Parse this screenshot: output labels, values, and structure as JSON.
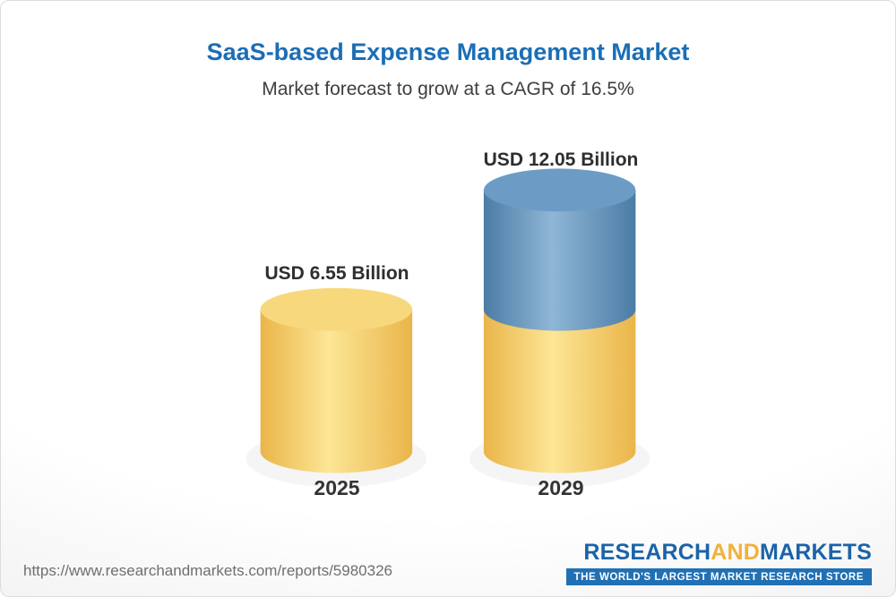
{
  "header": {
    "title": "SaaS-based Expense Management Market",
    "subtitle": "Market forecast to grow at a CAGR of 16.5%"
  },
  "chart_data": {
    "type": "bar",
    "variant": "3d-cylinder-stacked",
    "title": "SaaS-based Expense Management Market",
    "subtitle": "Market forecast to grow at a CAGR of 16.5%",
    "unit": "USD Billion",
    "cagr_pct": 16.5,
    "categories": [
      "2025",
      "2029"
    ],
    "totals": [
      6.55,
      12.05
    ],
    "value_labels": [
      "USD 6.55 Billion",
      "USD 12.05 Billion"
    ],
    "grid": false,
    "legend_position": "none",
    "segments": [
      [
        {
          "name": "market size 2025",
          "value": 6.55,
          "color": "yellow"
        }
      ],
      [
        {
          "name": "base (2025 market size)",
          "value": 6.55,
          "color": "yellow"
        },
        {
          "name": "growth 2025 to 2029",
          "value": 5.5,
          "color": "blue"
        }
      ]
    ],
    "palette": {
      "yellow_edge": "#eab54a",
      "yellow_mid": "#fce695",
      "yellow_top": "#f8d87c",
      "blue_edge": "#4b7ca5",
      "blue_mid": "#8fb6d6",
      "blue_top": "#6c9cc5"
    }
  },
  "footer": {
    "url": "https://www.researchandmarkets.com/reports/5980326",
    "logo": {
      "research": "RESEARCH",
      "and": "AND",
      "markets": "MARKETS",
      "tagline": "THE WORLD'S LARGEST MARKET RESEARCH STORE",
      "blue": "#1b63a8",
      "gold": "#f1b13c",
      "bar_blue": "#2170b4"
    }
  }
}
